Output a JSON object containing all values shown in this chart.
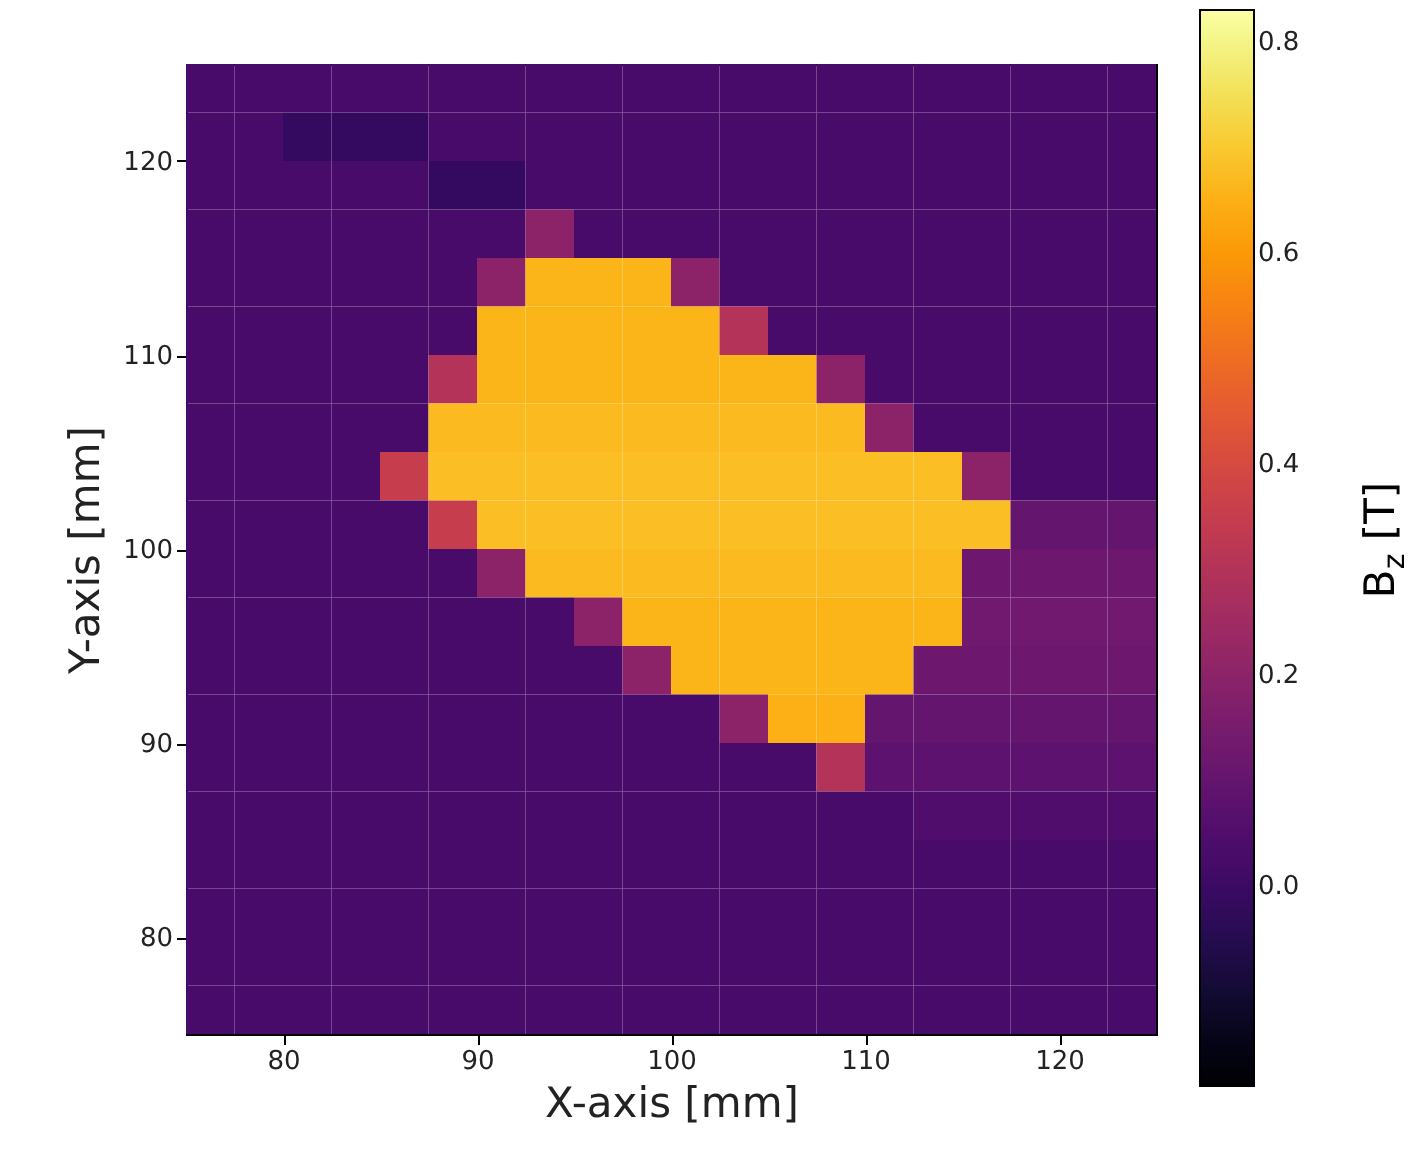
{
  "chart_data": {
    "type": "heatmap",
    "xlabel": "X-axis [mm]",
    "ylabel": "Y-axis [mm]",
    "clabel": "B$_{z}$ [T]",
    "xlim": [
      75,
      125
    ],
    "ylim": [
      75,
      125
    ],
    "xticks": [
      80,
      90,
      100,
      110,
      120
    ],
    "yticks": [
      80,
      90,
      100,
      110,
      120
    ],
    "clim": [
      -0.19,
      0.83
    ],
    "cticks": [
      {
        "value": 0,
        "label": "0.0"
      },
      0.2,
      0.4,
      0.6,
      0.8
    ],
    "cells": [
      [
        0.03,
        0.03,
        0.03,
        0.03,
        0.03,
        0.03,
        0.03,
        0.03,
        0.03,
        0.03,
        0.03,
        0.03,
        0.03,
        0.03,
        0.03,
        0.03,
        0.03,
        0.03,
        0.03,
        0.03
      ],
      [
        0.03,
        0.03,
        -0.02,
        -0.02,
        -0.02,
        0.03,
        0.03,
        0.03,
        0.03,
        0.03,
        0.03,
        0.03,
        0.03,
        0.03,
        0.03,
        0.03,
        0.03,
        0.03,
        0.03,
        0.03
      ],
      [
        0.03,
        0.03,
        0.03,
        0.03,
        0.03,
        -0.02,
        -0.02,
        0.03,
        0.03,
        0.03,
        0.03,
        0.03,
        0.03,
        0.03,
        0.03,
        0.03,
        0.03,
        0.03,
        0.03,
        0.03
      ],
      [
        0.03,
        0.03,
        0.03,
        0.03,
        0.03,
        0.03,
        0.03,
        0.2,
        0.03,
        0.03,
        0.03,
        0.03,
        0.03,
        0.03,
        0.03,
        0.03,
        0.03,
        0.03,
        0.03,
        0.03
      ],
      [
        0.03,
        0.03,
        0.03,
        0.03,
        0.03,
        0.03,
        0.2,
        0.66,
        0.66,
        0.66,
        0.2,
        0.03,
        0.03,
        0.03,
        0.03,
        0.03,
        0.03,
        0.03,
        0.03,
        0.03
      ],
      [
        0.03,
        0.03,
        0.03,
        0.03,
        0.03,
        0.03,
        0.66,
        0.66,
        0.66,
        0.66,
        0.66,
        0.3,
        0.03,
        0.03,
        0.03,
        0.03,
        0.03,
        0.03,
        0.03,
        0.03
      ],
      [
        0.03,
        0.03,
        0.03,
        0.03,
        0.03,
        0.3,
        0.66,
        0.66,
        0.66,
        0.66,
        0.66,
        0.66,
        0.66,
        0.2,
        0.03,
        0.03,
        0.03,
        0.03,
        0.03,
        0.03
      ],
      [
        0.03,
        0.03,
        0.03,
        0.03,
        0.03,
        0.67,
        0.67,
        0.67,
        0.67,
        0.67,
        0.67,
        0.67,
        0.67,
        0.67,
        0.2,
        0.03,
        0.03,
        0.03,
        0.03,
        0.03
      ],
      [
        0.03,
        0.03,
        0.03,
        0.03,
        0.35,
        0.68,
        0.68,
        0.68,
        0.68,
        0.68,
        0.68,
        0.68,
        0.68,
        0.68,
        0.68,
        0.68,
        0.2,
        0.03,
        0.03,
        0.03
      ],
      [
        0.03,
        0.03,
        0.03,
        0.03,
        0.03,
        0.35,
        0.68,
        0.68,
        0.68,
        0.68,
        0.68,
        0.68,
        0.68,
        0.68,
        0.68,
        0.68,
        0.68,
        0.1,
        0.1,
        0.1
      ],
      [
        0.03,
        0.03,
        0.03,
        0.03,
        0.03,
        0.03,
        0.2,
        0.67,
        0.67,
        0.67,
        0.67,
        0.67,
        0.67,
        0.67,
        0.67,
        0.67,
        0.12,
        0.12,
        0.12,
        0.12
      ],
      [
        0.03,
        0.03,
        0.03,
        0.03,
        0.03,
        0.03,
        0.03,
        0.03,
        0.2,
        0.66,
        0.66,
        0.66,
        0.66,
        0.66,
        0.66,
        0.66,
        0.13,
        0.13,
        0.13,
        0.13
      ],
      [
        0.03,
        0.03,
        0.03,
        0.03,
        0.03,
        0.03,
        0.03,
        0.03,
        0.03,
        0.2,
        0.66,
        0.66,
        0.66,
        0.66,
        0.66,
        0.12,
        0.12,
        0.12,
        0.12,
        0.12
      ],
      [
        0.03,
        0.03,
        0.03,
        0.03,
        0.03,
        0.03,
        0.03,
        0.03,
        0.03,
        0.03,
        0.03,
        0.2,
        0.65,
        0.65,
        0.1,
        0.1,
        0.1,
        0.1,
        0.1,
        0.1
      ],
      [
        0.03,
        0.03,
        0.03,
        0.03,
        0.03,
        0.03,
        0.03,
        0.03,
        0.03,
        0.03,
        0.03,
        0.03,
        0.03,
        0.3,
        0.08,
        0.08,
        0.08,
        0.08,
        0.08,
        0.08
      ],
      [
        0.03,
        0.03,
        0.03,
        0.03,
        0.03,
        0.03,
        0.03,
        0.03,
        0.03,
        0.03,
        0.03,
        0.03,
        0.03,
        0.03,
        0.03,
        0.05,
        0.05,
        0.05,
        0.05,
        0.05
      ],
      [
        0.03,
        0.03,
        0.03,
        0.03,
        0.03,
        0.03,
        0.03,
        0.03,
        0.03,
        0.03,
        0.03,
        0.03,
        0.03,
        0.03,
        0.03,
        0.03,
        0.03,
        0.03,
        0.03,
        0.03
      ],
      [
        0.03,
        0.03,
        0.03,
        0.03,
        0.03,
        0.03,
        0.03,
        0.03,
        0.03,
        0.03,
        0.03,
        0.03,
        0.03,
        0.03,
        0.03,
        0.03,
        0.03,
        0.03,
        0.03,
        0.03
      ],
      [
        0.03,
        0.03,
        0.03,
        0.03,
        0.03,
        0.03,
        0.03,
        0.03,
        0.03,
        0.03,
        0.03,
        0.03,
        0.03,
        0.03,
        0.03,
        0.03,
        0.03,
        0.03,
        0.03,
        0.03
      ],
      [
        0.03,
        0.03,
        0.03,
        0.03,
        0.03,
        0.03,
        0.03,
        0.03,
        0.03,
        0.03,
        0.03,
        0.03,
        0.03,
        0.03,
        0.03,
        0.03,
        0.03,
        0.03,
        0.03,
        0.03
      ]
    ]
  }
}
